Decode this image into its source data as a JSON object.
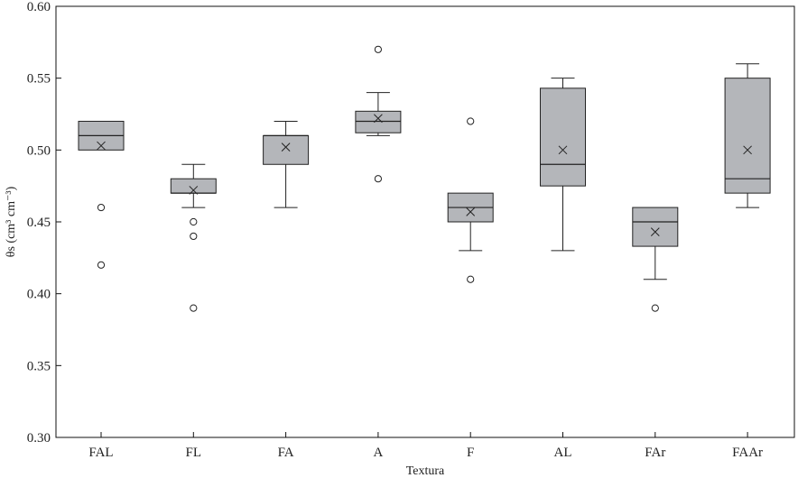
{
  "chart_data": {
    "type": "box",
    "xlabel": "Textura",
    "ylabel": "θs (cm³ cm⁻³)",
    "ylim": [
      0.3,
      0.6
    ],
    "yticks": [
      "0.30",
      "0.35",
      "0.40",
      "0.45",
      "0.50",
      "0.55",
      "0.60"
    ],
    "box_color": "#b4b6ba",
    "categories": [
      "FAL",
      "FL",
      "FA",
      "A",
      "F",
      "AL",
      "FAr",
      "FAAr"
    ],
    "boxes": [
      {
        "name": "FAL",
        "whisker_low": 0.5,
        "q1": 0.5,
        "median": 0.51,
        "q3": 0.52,
        "whisker_high": 0.52,
        "mean": 0.503,
        "outliers": [
          0.46,
          0.42
        ]
      },
      {
        "name": "FL",
        "whisker_low": 0.46,
        "q1": 0.47,
        "median": 0.47,
        "q3": 0.48,
        "whisker_high": 0.49,
        "mean": 0.472,
        "outliers": [
          0.45,
          0.44,
          0.39
        ]
      },
      {
        "name": "FA",
        "whisker_low": 0.46,
        "q1": 0.49,
        "median": 0.51,
        "q3": 0.51,
        "whisker_high": 0.52,
        "mean": 0.502,
        "outliers": []
      },
      {
        "name": "A",
        "whisker_low": 0.51,
        "q1": 0.512,
        "median": 0.52,
        "q3": 0.527,
        "whisker_high": 0.54,
        "mean": 0.522,
        "outliers": [
          0.57,
          0.48
        ]
      },
      {
        "name": "F",
        "whisker_low": 0.43,
        "q1": 0.45,
        "median": 0.46,
        "q3": 0.47,
        "whisker_high": 0.47,
        "mean": 0.457,
        "outliers": [
          0.52,
          0.41
        ]
      },
      {
        "name": "AL",
        "whisker_low": 0.43,
        "q1": 0.475,
        "median": 0.49,
        "q3": 0.543,
        "whisker_high": 0.55,
        "mean": 0.5,
        "outliers": []
      },
      {
        "name": "FAr",
        "whisker_low": 0.41,
        "q1": 0.433,
        "median": 0.45,
        "q3": 0.46,
        "whisker_high": 0.46,
        "mean": 0.443,
        "outliers": [
          0.39
        ]
      },
      {
        "name": "FAAr",
        "whisker_low": 0.46,
        "q1": 0.47,
        "median": 0.48,
        "q3": 0.55,
        "whisker_high": 0.56,
        "mean": 0.5,
        "outliers": []
      }
    ]
  }
}
